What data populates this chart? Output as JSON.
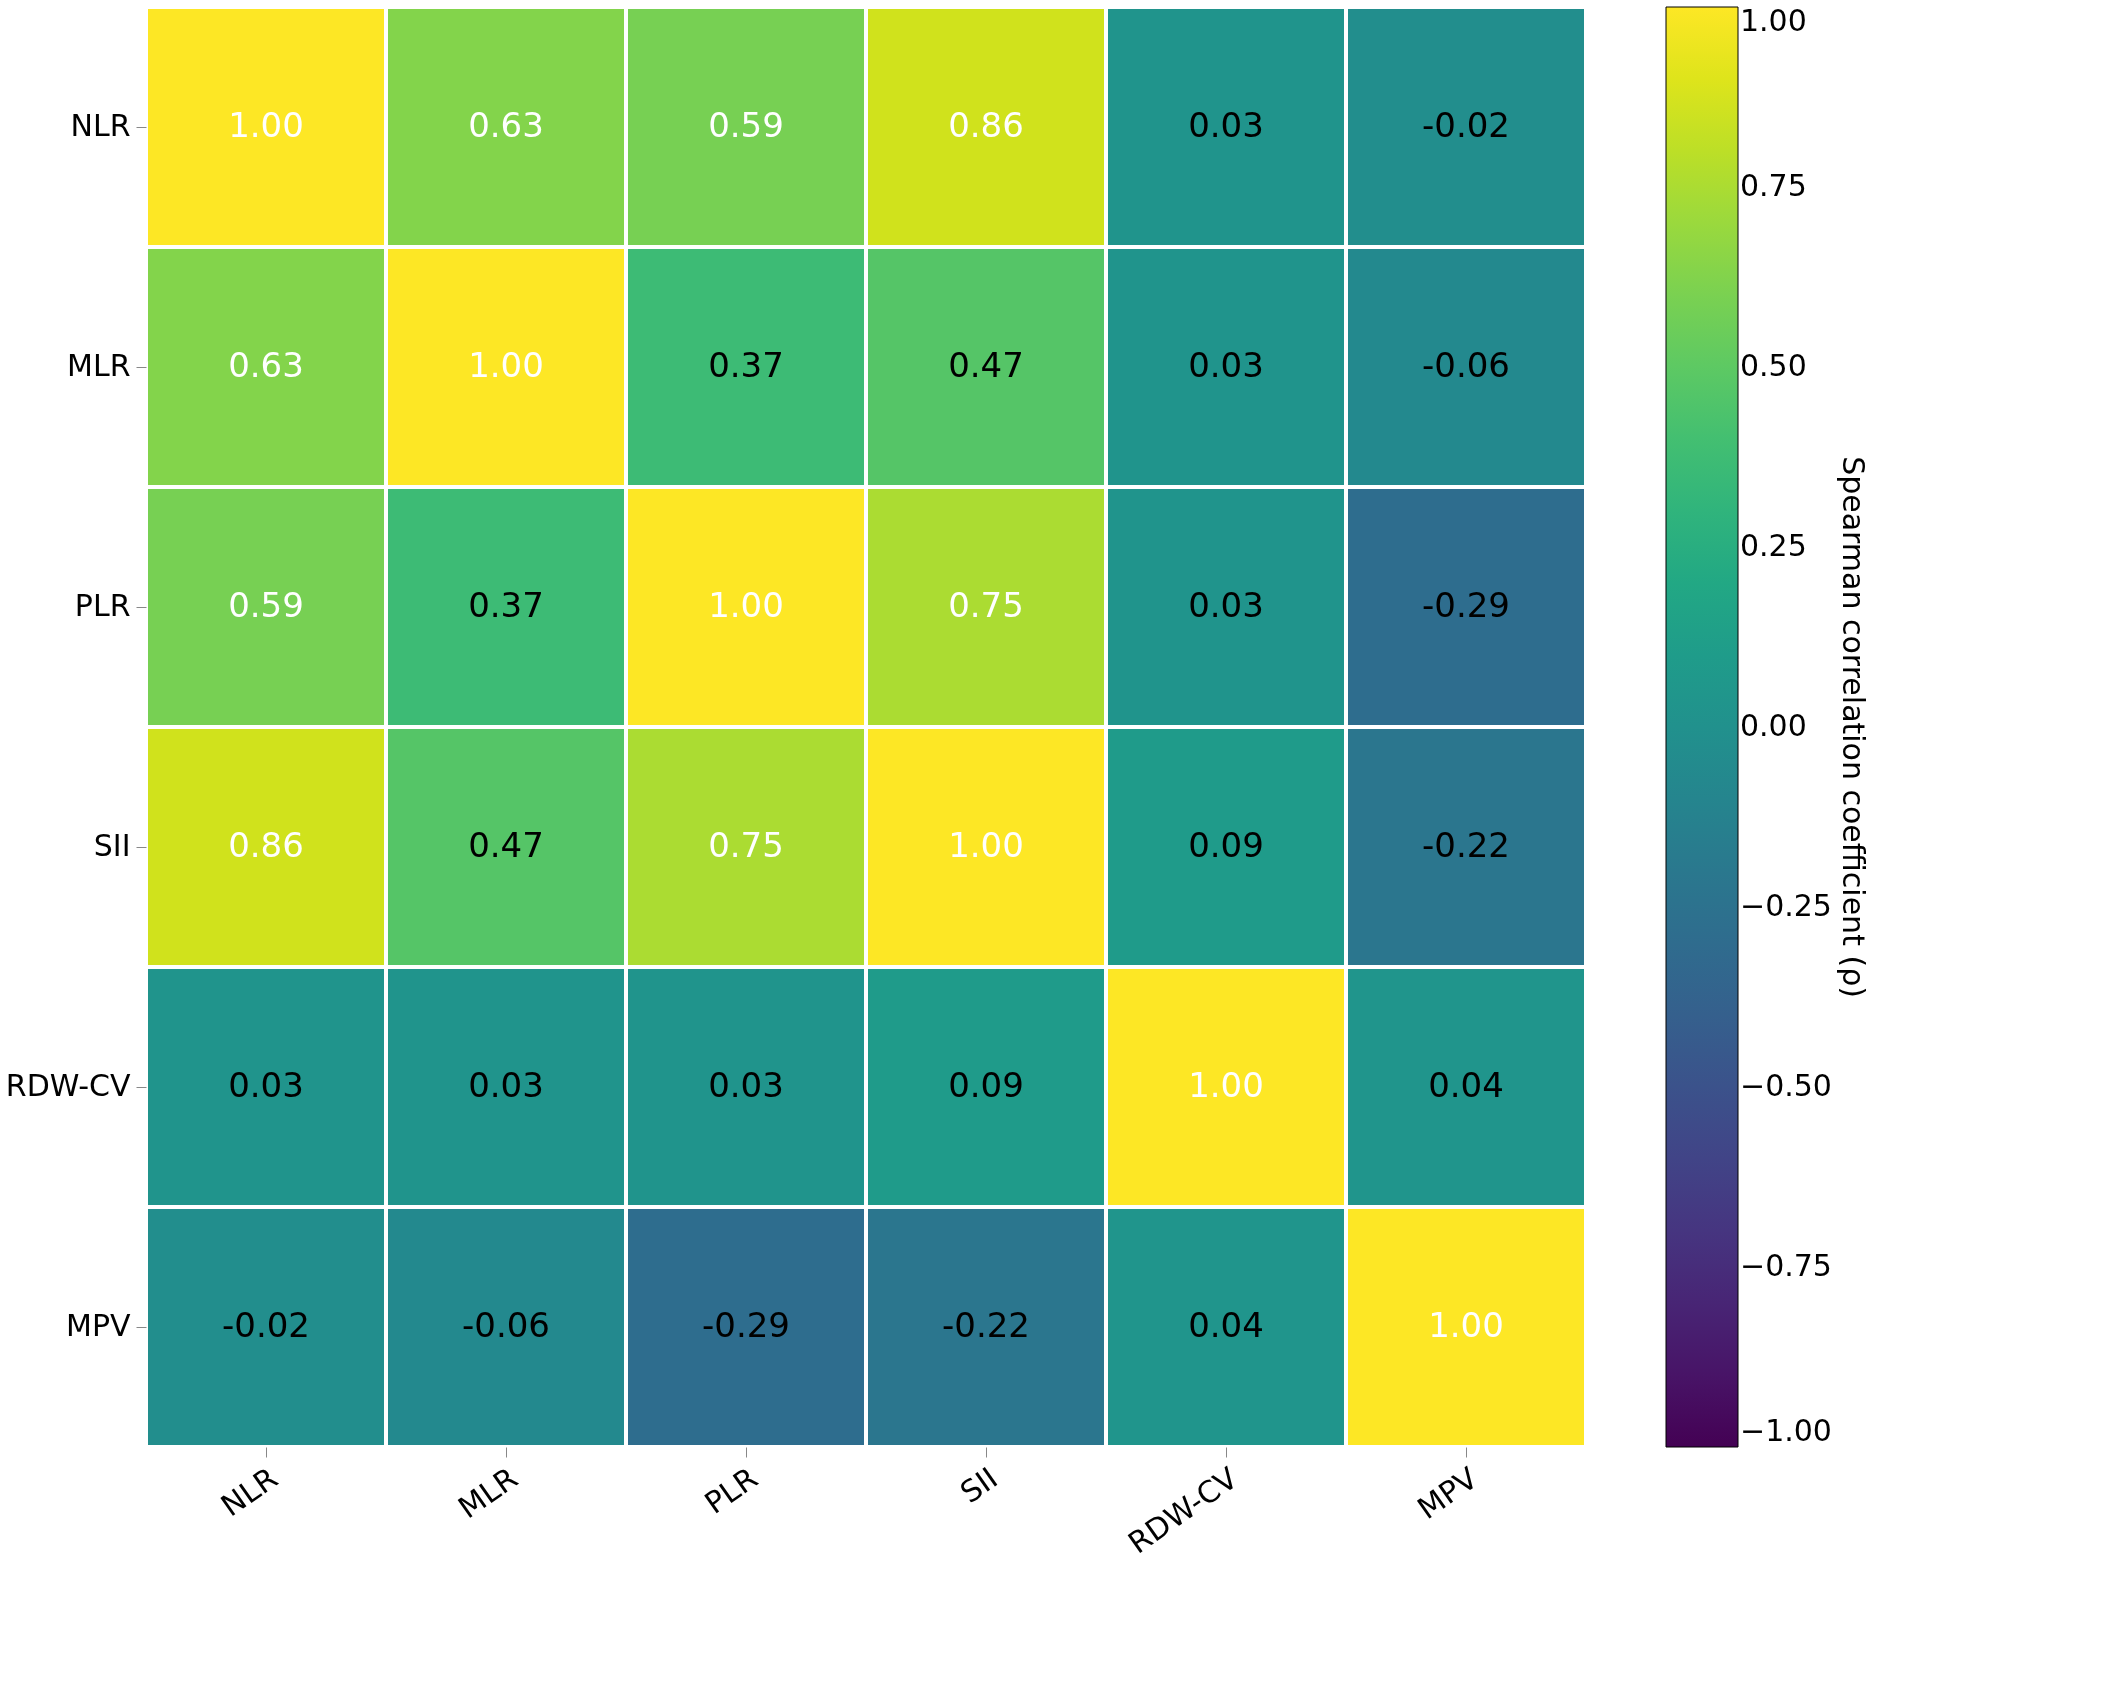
{
  "chart_data": {
    "type": "heatmap",
    "categories": [
      "NLR",
      "MLR",
      "PLR",
      "SII",
      "RDW-CV",
      "MPV"
    ],
    "y_categories": [
      "NLR",
      "MLR",
      "PLR",
      "SII",
      "RDW-CV",
      "MPV"
    ],
    "cells": [
      [
        1.0,
        0.63,
        0.59,
        0.86,
        0.03,
        -0.02
      ],
      [
        0.63,
        1.0,
        0.37,
        0.47,
        0.03,
        -0.06
      ],
      [
        0.59,
        0.37,
        1.0,
        0.75,
        0.03,
        -0.29
      ],
      [
        0.86,
        0.47,
        0.75,
        1.0,
        0.09,
        -0.22
      ],
      [
        0.03,
        0.03,
        0.03,
        0.09,
        1.0,
        0.04
      ],
      [
        -0.02,
        -0.06,
        -0.29,
        -0.22,
        0.04,
        1.0
      ]
    ],
    "cell_labels": [
      [
        "1.00",
        "0.63",
        "0.59",
        "0.86",
        "0.03",
        "-0.02"
      ],
      [
        "0.63",
        "1.00",
        "0.37",
        "0.47",
        "0.03",
        "-0.06"
      ],
      [
        "0.59",
        "0.37",
        "1.00",
        "0.75",
        "0.03",
        "-0.29"
      ],
      [
        "0.86",
        "0.47",
        "0.75",
        "1.00",
        "0.09",
        "-0.22"
      ],
      [
        "0.03",
        "0.03",
        "0.03",
        "0.09",
        "1.00",
        "0.04"
      ],
      [
        "-0.02",
        "-0.06",
        "-0.29",
        "-0.22",
        "0.04",
        "1.00"
      ]
    ],
    "clabel": "Spearman correlation coefficient (ρ)",
    "clim": [
      -1,
      1
    ],
    "cticks": [
      {
        "value": -1,
        "label": "−1.00"
      },
      {
        "value": -0.75,
        "label": "−0.75"
      },
      {
        "value": -0.5,
        "label": "−0.50"
      },
      {
        "value": -0.25,
        "label": "−0.25"
      },
      {
        "value": 0,
        "label": "0.00"
      },
      {
        "value": 0.25,
        "label": "0.25"
      },
      {
        "value": 0.5,
        "label": "0.50"
      },
      {
        "value": 0.75,
        "label": "0.75"
      },
      {
        "value": 1,
        "label": "1.00"
      }
    ],
    "data_labels": true
  }
}
